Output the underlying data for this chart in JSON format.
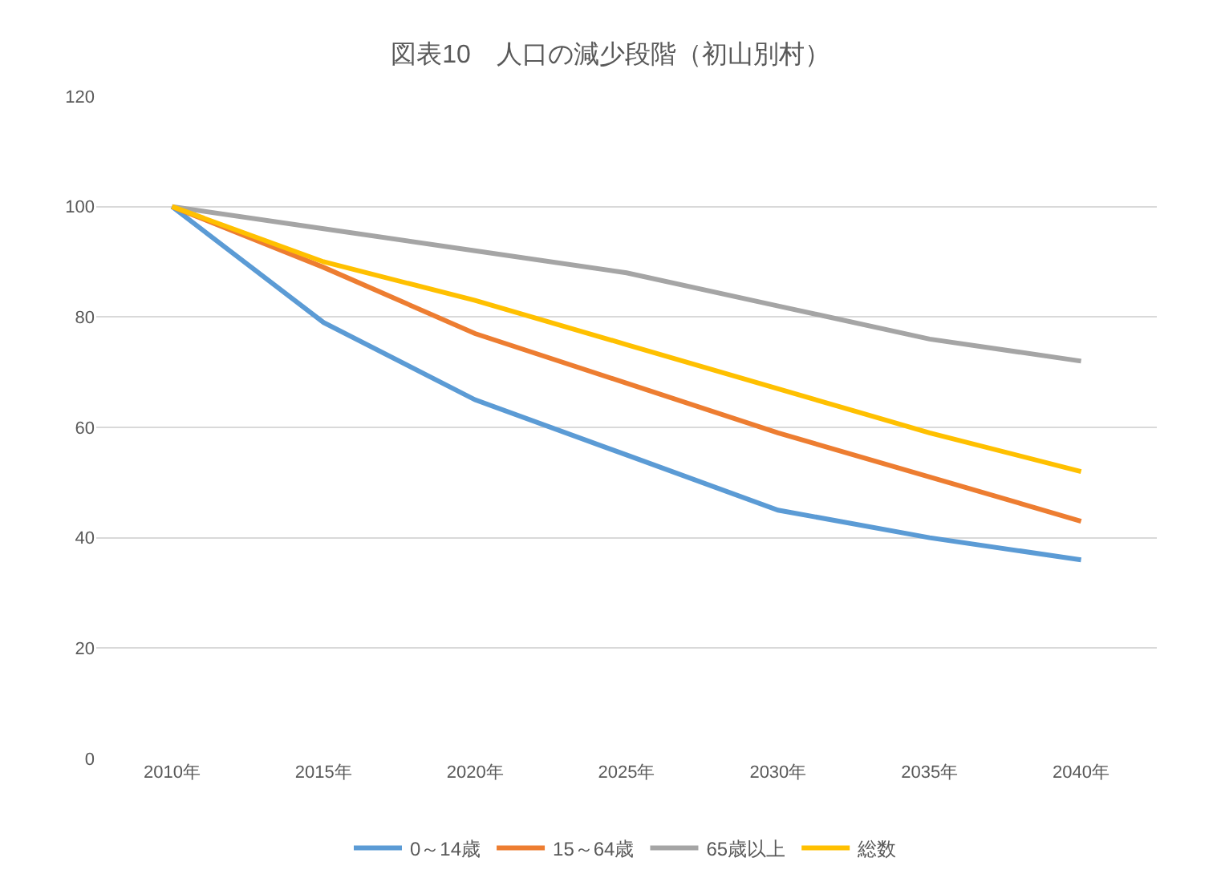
{
  "chart_data": {
    "type": "line",
    "title": "図表10　人口の減少段階（初山別村）",
    "categories": [
      "2010年",
      "2015年",
      "2020年",
      "2025年",
      "2030年",
      "2035年",
      "2040年"
    ],
    "series": [
      {
        "name": "0～14歳",
        "color": "#5b9bd5",
        "values": [
          100,
          79,
          65,
          55,
          45,
          40,
          36
        ]
      },
      {
        "name": "15～64歳",
        "color": "#ed7d31",
        "values": [
          100,
          89,
          77,
          68,
          59,
          51,
          43
        ]
      },
      {
        "name": "65歳以上",
        "color": "#a5a5a5",
        "values": [
          100,
          96,
          92,
          88,
          82,
          76,
          72
        ]
      },
      {
        "name": "総数",
        "color": "#ffc000",
        "values": [
          100,
          90,
          83,
          75,
          67,
          59,
          52
        ]
      }
    ],
    "ylim": [
      0,
      120
    ],
    "yticks": [
      0,
      20,
      40,
      60,
      80,
      100,
      120
    ],
    "grid": "y",
    "legend": "bottom",
    "marker": "none",
    "line_style": "solid"
  }
}
